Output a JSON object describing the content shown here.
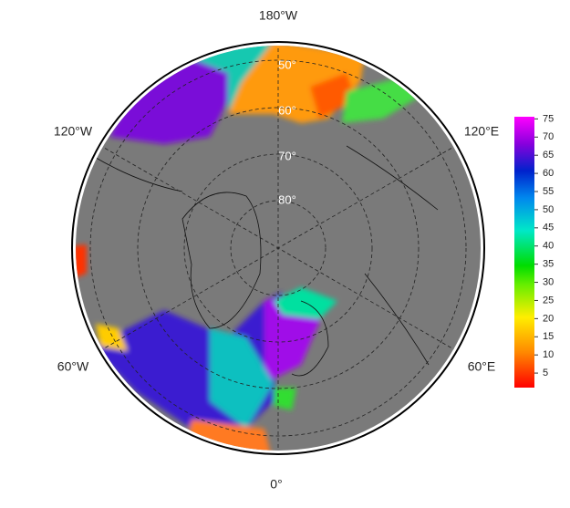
{
  "map": {
    "lon_labels": {
      "top": "180°W",
      "upper_left": "120°W",
      "upper_right": "120°E",
      "lower_left": "60°W",
      "lower_right": "60°E",
      "bottom": "0°"
    },
    "lat_labels": [
      "50°",
      "60°",
      "70°",
      "80°"
    ]
  },
  "colorbar": {
    "lim": [
      1,
      75.6
    ],
    "ticks": [
      5,
      10,
      15,
      20,
      25,
      30,
      35,
      40,
      45,
      50,
      55,
      60,
      65,
      70,
      75
    ]
  }
}
